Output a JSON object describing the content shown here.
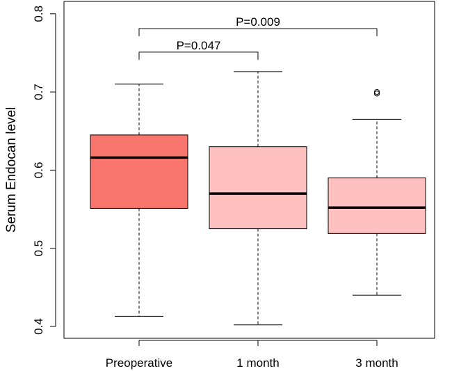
{
  "chart_data": {
    "type": "boxplot",
    "title": "",
    "xlabel": "",
    "ylabel": "Serum Endocan level",
    "ylim": [
      0.4,
      0.8
    ],
    "yticks": [
      "0.4",
      "0.5",
      "0.6",
      "0.7",
      "0.8"
    ],
    "categories": [
      "Preoperative",
      "1 month",
      "3 month"
    ],
    "boxes": [
      {
        "name": "Preoperative",
        "whisker_low": 0.413,
        "q1": 0.551,
        "median": 0.616,
        "q3": 0.645,
        "whisker_high": 0.71,
        "outliers": [],
        "fill": "#f8766d"
      },
      {
        "name": "1 month",
        "whisker_low": 0.402,
        "q1": 0.525,
        "median": 0.57,
        "q3": 0.63,
        "whisker_high": 0.726,
        "outliers": [],
        "fill": "#ffc0c0"
      },
      {
        "name": "3 month",
        "whisker_low": 0.44,
        "q1": 0.519,
        "median": 0.552,
        "q3": 0.59,
        "whisker_high": 0.665,
        "outliers": [
          0.698,
          0.7
        ],
        "fill": "#ffc0c0"
      }
    ],
    "annotations": [
      {
        "label": "P=0.047",
        "from": 0,
        "to": 1,
        "y": 0.751
      },
      {
        "label": "P=0.009",
        "from": 0,
        "to": 2,
        "y": 0.781
      }
    ]
  }
}
